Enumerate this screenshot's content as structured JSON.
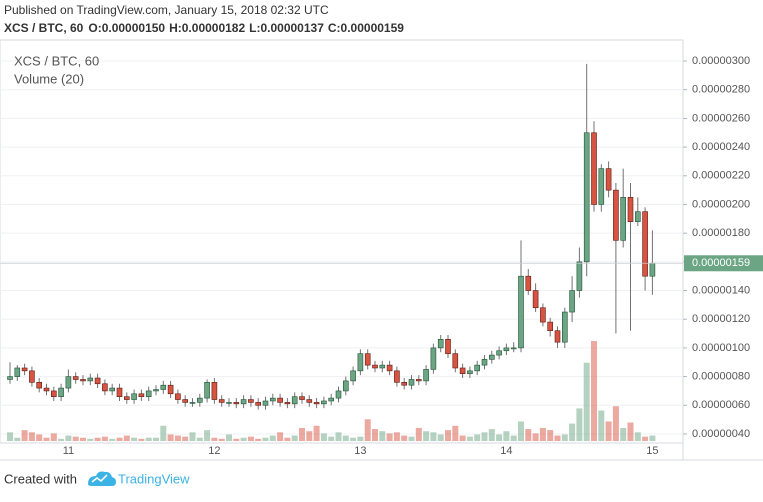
{
  "header": {
    "published": "Published on TradingView.com, January 15, 2018 02:32 UTC",
    "symbol_line": "XCS / BTC, 60",
    "ohlc": [
      "O:0.00000150",
      "H:0.00000182",
      "L:0.00000137",
      "C:0.00000159"
    ]
  },
  "chart_data": {
    "type": "candlestick",
    "title": "XCS / BTC, 60",
    "volume_title": "Volume (20)",
    "categories": [
      null,
      null,
      null,
      null,
      null,
      null,
      null,
      null,
      "11",
      null,
      null,
      null,
      null,
      null,
      null,
      null,
      null,
      null,
      null,
      null,
      null,
      null,
      null,
      null,
      null,
      null,
      null,
      null,
      "12",
      null,
      null,
      null,
      null,
      null,
      null,
      null,
      null,
      null,
      null,
      null,
      null,
      null,
      null,
      null,
      null,
      null,
      null,
      null,
      "13",
      null,
      null,
      null,
      null,
      null,
      null,
      null,
      null,
      null,
      null,
      null,
      null,
      null,
      null,
      null,
      null,
      null,
      null,
      null,
      "14",
      null,
      null,
      null,
      null,
      null,
      null,
      null,
      null,
      null,
      null,
      null,
      null,
      null,
      null,
      null,
      null,
      null,
      null,
      null,
      "15"
    ],
    "open": [
      7.8e-07,
      8e-07,
      8.6e-07,
      8.4e-07,
      7.6e-07,
      7.2e-07,
      7e-07,
      6.6e-07,
      7.2e-07,
      8e-07,
      7.8e-07,
      7.7e-07,
      7.9e-07,
      7.5e-07,
      7e-07,
      7.2e-07,
      6.6e-07,
      6.4e-07,
      6.8e-07,
      6.6e-07,
      7e-07,
      7.1e-07,
      7.4e-07,
      6.8e-07,
      6.4e-07,
      6.2e-07,
      6.2e-07,
      6.5e-07,
      7.6e-07,
      6.4e-07,
      6.2e-07,
      6.2e-07,
      6.1e-07,
      6.4e-07,
      6.2e-07,
      6e-07,
      6.3e-07,
      6.5e-07,
      6.2e-07,
      6.1e-07,
      6.6e-07,
      6.4e-07,
      6.2e-07,
      6.1e-07,
      6.3e-07,
      6.5e-07,
      7e-07,
      7.7e-07,
      8.4e-07,
      9.6e-07,
      8.8e-07,
      8.6e-07,
      8.8e-07,
      8.4e-07,
      7.6e-07,
      7.4e-07,
      7.8e-07,
      7.7e-07,
      8.5e-07,
      1e-06,
      1.06e-06,
      9.6e-07,
      8.6e-07,
      8.2e-07,
      8.4e-07,
      8.8e-07,
      9.2e-07,
      9.5e-07,
      9.8e-07,
      1e-06,
      1e-06,
      1.5e-06,
      1.4e-06,
      1.28e-06,
      1.18e-06,
      1.12e-06,
      1.04e-06,
      1.25e-06,
      1.4e-06,
      1.6e-06,
      2.5e-06,
      2e-06,
      2.25e-06,
      2.1e-06,
      1.75e-06,
      2.05e-06,
      1.88e-06,
      1.95e-06,
      1.5e-06
    ],
    "high": [
      9e-07,
      8.8e-07,
      8.9e-07,
      8.7e-07,
      7.9e-07,
      7.5e-07,
      7.3e-07,
      7.5e-07,
      8.5e-07,
      8.3e-07,
      8.1e-07,
      8.2e-07,
      8.2e-07,
      7.8e-07,
      7.5e-07,
      7.5e-07,
      6.9e-07,
      7.1e-07,
      7.1e-07,
      7.3e-07,
      7.4e-07,
      7.7e-07,
      7.7e-07,
      7.1e-07,
      6.7e-07,
      6.5e-07,
      6.8e-07,
      7.8e-07,
      7.9e-07,
      6.7e-07,
      6.5e-07,
      6.5e-07,
      6.7e-07,
      6.7e-07,
      6.5e-07,
      6.6e-07,
      6.8e-07,
      6.8e-07,
      6.5e-07,
      6.9e-07,
      6.9e-07,
      6.7e-07,
      6.5e-07,
      6.6e-07,
      6.8e-07,
      7.3e-07,
      8e-07,
      8.7e-07,
      9.9e-07,
      9.9e-07,
      9.1e-07,
      9.1e-07,
      9.1e-07,
      8.7e-07,
      7.9e-07,
      8.1e-07,
      8.1e-07,
      8.8e-07,
      1.03e-06,
      1.09e-06,
      1.09e-06,
      9.9e-07,
      8.9e-07,
      8.7e-07,
      9.1e-07,
      9.5e-07,
      9.8e-07,
      1.01e-06,
      1.03e-06,
      1.04e-06,
      1.75e-06,
      1.55e-06,
      1.45e-06,
      1.31e-06,
      1.21e-06,
      1.15e-06,
      1.28e-06,
      1.5e-06,
      1.7e-06,
      2.98e-06,
      2.58e-06,
      2.28e-06,
      2.3e-06,
      2.15e-06,
      2.25e-06,
      2.15e-06,
      2.05e-06,
      1.98e-06,
      1.82e-06
    ],
    "low": [
      7.5e-07,
      7.7e-07,
      8.1e-07,
      7.3e-07,
      6.9e-07,
      6.7e-07,
      6.3e-07,
      6.3e-07,
      6.9e-07,
      7.5e-07,
      7.4e-07,
      7.4e-07,
      7.2e-07,
      6.7e-07,
      6.7e-07,
      6.3e-07,
      6.1e-07,
      6.1e-07,
      6.3e-07,
      6.3e-07,
      6.7e-07,
      6.8e-07,
      6.5e-07,
      6.1e-07,
      5.9e-07,
      5.9e-07,
      5.9e-07,
      6.2e-07,
      6.1e-07,
      5.9e-07,
      5.9e-07,
      5.8e-07,
      5.8e-07,
      5.9e-07,
      5.7e-07,
      5.7e-07,
      6e-07,
      5.9e-07,
      5.8e-07,
      5.8e-07,
      6.1e-07,
      5.9e-07,
      5.8e-07,
      5.8e-07,
      6e-07,
      6.2e-07,
      6.7e-07,
      7.4e-07,
      8.1e-07,
      8.5e-07,
      8.3e-07,
      8.3e-07,
      8.1e-07,
      7.3e-07,
      7.1e-07,
      7.1e-07,
      7.4e-07,
      7.4e-07,
      8.2e-07,
      9.7e-07,
      9.3e-07,
      8.3e-07,
      7.9e-07,
      7.9e-07,
      8.1e-07,
      8.5e-07,
      8.9e-07,
      9.2e-07,
      9.5e-07,
      9.7e-07,
      9.7e-07,
      1.37e-06,
      1.25e-06,
      1.15e-06,
      1.08e-06,
      1e-06,
      1e-06,
      1.18e-06,
      1.35e-06,
      1.5e-06,
      1.95e-06,
      1.95e-06,
      2.05e-06,
      1.1e-06,
      1.7e-06,
      1.12e-06,
      1.85e-06,
      1.4e-06,
      1.37e-06
    ],
    "close": [
      8e-07,
      8.6e-07,
      8.4e-07,
      7.6e-07,
      7.2e-07,
      7e-07,
      6.6e-07,
      7.2e-07,
      8e-07,
      7.8e-07,
      7.7e-07,
      7.9e-07,
      7.5e-07,
      7e-07,
      7.2e-07,
      6.6e-07,
      6.4e-07,
      6.8e-07,
      6.6e-07,
      7e-07,
      7.1e-07,
      7.4e-07,
      6.8e-07,
      6.4e-07,
      6.2e-07,
      6.2e-07,
      6.5e-07,
      7.6e-07,
      6.4e-07,
      6.2e-07,
      6.2e-07,
      6.1e-07,
      6.4e-07,
      6.2e-07,
      6e-07,
      6.3e-07,
      6.5e-07,
      6.2e-07,
      6.1e-07,
      6.6e-07,
      6.4e-07,
      6.2e-07,
      6.1e-07,
      6.3e-07,
      6.5e-07,
      7e-07,
      7.7e-07,
      8.4e-07,
      9.6e-07,
      8.8e-07,
      8.6e-07,
      8.8e-07,
      8.4e-07,
      7.6e-07,
      7.4e-07,
      7.8e-07,
      7.7e-07,
      8.5e-07,
      1e-06,
      1.06e-06,
      9.6e-07,
      8.6e-07,
      8.2e-07,
      8.4e-07,
      8.8e-07,
      9.2e-07,
      9.5e-07,
      9.8e-07,
      1e-06,
      1e-06,
      1.5e-06,
      1.4e-06,
      1.28e-06,
      1.18e-06,
      1.12e-06,
      1.04e-06,
      1.25e-06,
      1.4e-06,
      1.6e-06,
      2.5e-06,
      2e-06,
      2.25e-06,
      2.1e-06,
      1.75e-06,
      2.05e-06,
      1.88e-06,
      1.95e-06,
      1.5e-06,
      1.59e-06
    ],
    "volume": [
      8,
      3,
      10,
      8,
      6,
      3,
      7,
      2,
      5,
      4,
      3,
      2,
      3,
      4,
      2,
      3,
      5,
      3,
      2,
      3,
      3,
      14,
      6,
      5,
      4,
      8,
      3,
      10,
      3,
      2,
      6,
      2,
      3,
      4,
      2,
      3,
      5,
      8,
      3,
      5,
      12,
      9,
      14,
      7,
      4,
      8,
      5,
      3,
      4,
      20,
      11,
      9,
      7,
      8,
      5,
      4,
      12,
      9,
      8,
      6,
      10,
      14,
      5,
      4,
      6,
      8,
      11,
      6,
      9,
      5,
      18,
      11,
      7,
      12,
      10,
      5,
      6,
      16,
      30,
      72,
      92,
      28,
      18,
      32,
      12,
      17,
      8,
      4,
      5
    ],
    "up_color": "#6ba583",
    "down_color": "#d75442",
    "ylim": [
      3.37e-07,
      3.077e-06
    ],
    "yticks": [
      {
        "value": 4e-07,
        "label": "0.00000040"
      },
      {
        "value": 6e-07,
        "label": "0.00000060"
      },
      {
        "value": 8e-07,
        "label": "0.00000080"
      },
      {
        "value": 1e-06,
        "label": "0.00000100"
      },
      {
        "value": 1.2e-06,
        "label": "0.00000120"
      },
      {
        "value": 1.4e-06,
        "label": "0.00000140"
      },
      {
        "value": 1.6e-06,
        "label": "0.00000160"
      },
      {
        "value": 1.8e-06,
        "label": "0.00000180"
      },
      {
        "value": 2e-06,
        "label": "0.00000200"
      },
      {
        "value": 2.2e-06,
        "label": "0.00000220"
      },
      {
        "value": 2.4e-06,
        "label": "0.00000240"
      },
      {
        "value": 2.6e-06,
        "label": "0.00000260"
      },
      {
        "value": 2.8e-06,
        "label": "0.00000280"
      },
      {
        "value": 3e-06,
        "label": "0.00000300"
      }
    ],
    "grid": true,
    "last_price": {
      "value": 1.59e-06,
      "label": "0.00000159"
    }
  },
  "footer": {
    "text": "Created with",
    "brand": "TradingView"
  }
}
